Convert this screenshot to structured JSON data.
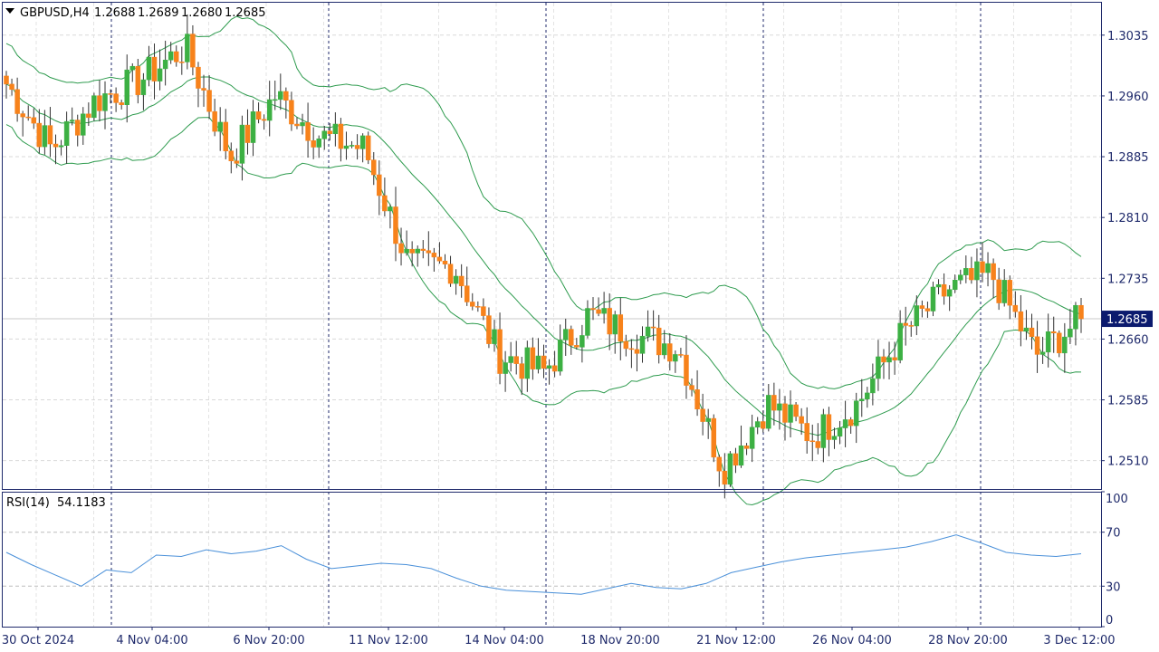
{
  "header": {
    "symbol": "GBPUSD,H4",
    "open": "1.2688",
    "high": "1.2689",
    "low": "1.2680",
    "close": "1.2685"
  },
  "rsi_header": {
    "label": "RSI(14)",
    "value": "54.1183"
  },
  "price_axis": {
    "ticks": [
      "1.3035",
      "1.2960",
      "1.2885",
      "1.2810",
      "1.2735",
      "1.2660",
      "1.2585",
      "1.2510"
    ],
    "current_price": "1.2685"
  },
  "rsi_axis": {
    "ticks": [
      "100",
      "70",
      "30",
      "0"
    ]
  },
  "time_axis": {
    "labels": [
      "30 Oct 2024",
      "4 Nov 04:00",
      "6 Nov 20:00",
      "11 Nov 12:00",
      "14 Nov 04:00",
      "18 Nov 20:00",
      "21 Nov 12:00",
      "26 Nov 04:00",
      "28 Nov 20:00",
      "3 Dec 12:00"
    ]
  },
  "colors": {
    "bull": "#3cb043",
    "bear": "#f7821b",
    "bands": "#2e9b4e",
    "rsi": "#4a90d9",
    "axis_text": "#1f2a6b",
    "current_price_bg": "#0b1a6e"
  },
  "chart_data": [
    {
      "type": "candlestick",
      "title": "GBPUSD,H4",
      "indicator": "Bollinger Bands",
      "ylim": [
        1.2475,
        1.3075
      ],
      "x_labels": [
        "30 Oct 2024",
        "4 Nov 04:00",
        "6 Nov 20:00",
        "11 Nov 12:00",
        "14 Nov 04:00",
        "18 Nov 20:00",
        "21 Nov 12:00",
        "26 Nov 04:00",
        "28 Nov 20:00",
        "3 Dec 12:00"
      ],
      "last_close": 1.2685,
      "anchors": [
        {
          "x": "30 Oct 2024",
          "close": 1.2975
        },
        {
          "x": "1 Nov",
          "close": 1.2895
        },
        {
          "x": "1 Nov 16:00",
          "close": 1.2955
        },
        {
          "x": "5 Nov",
          "close": 1.298
        },
        {
          "x": "6 Nov",
          "close": 1.302
        },
        {
          "x": "6 Nov 08:00",
          "close": 1.2885
        },
        {
          "x": "7 Nov",
          "close": 1.296
        },
        {
          "x": "8 Nov",
          "close": 1.291
        },
        {
          "x": "11 Nov",
          "close": 1.2895
        },
        {
          "x": "12 Nov",
          "close": 1.275
        },
        {
          "x": "13 Nov",
          "close": 1.275
        },
        {
          "x": "14 Nov",
          "close": 1.264
        },
        {
          "x": "15 Nov",
          "close": 1.262
        },
        {
          "x": "18 Nov",
          "close": 1.269
        },
        {
          "x": "19 Nov",
          "close": 1.2665
        },
        {
          "x": "20 Nov",
          "close": 1.265
        },
        {
          "x": "21 Nov",
          "close": 1.25
        },
        {
          "x": "22 Nov",
          "close": 1.258
        },
        {
          "x": "25 Nov",
          "close": 1.254
        },
        {
          "x": "26 Nov",
          "close": 1.258
        },
        {
          "x": "27 Nov",
          "close": 1.2665
        },
        {
          "x": "28 Nov",
          "close": 1.272
        },
        {
          "x": "29 Nov",
          "close": 1.274
        },
        {
          "x": "2 Dec",
          "close": 1.264
        },
        {
          "x": "3 Dec 12:00",
          "close": 1.2685
        }
      ]
    },
    {
      "type": "line",
      "title": "RSI(14)",
      "ylim": [
        0,
        100
      ],
      "levels": [
        30,
        70
      ],
      "last_value": 54.1183,
      "series": [
        {
          "values": [
            55,
            46,
            38,
            30,
            42,
            40,
            53,
            52,
            57,
            54,
            56,
            60,
            50,
            43,
            45,
            47,
            46,
            43,
            36,
            30,
            27,
            26,
            25,
            24,
            28,
            32,
            29,
            28,
            32,
            40,
            44,
            48,
            51,
            53,
            55,
            57,
            59,
            63,
            68,
            62,
            55,
            53,
            52,
            54
          ]
        }
      ]
    }
  ]
}
